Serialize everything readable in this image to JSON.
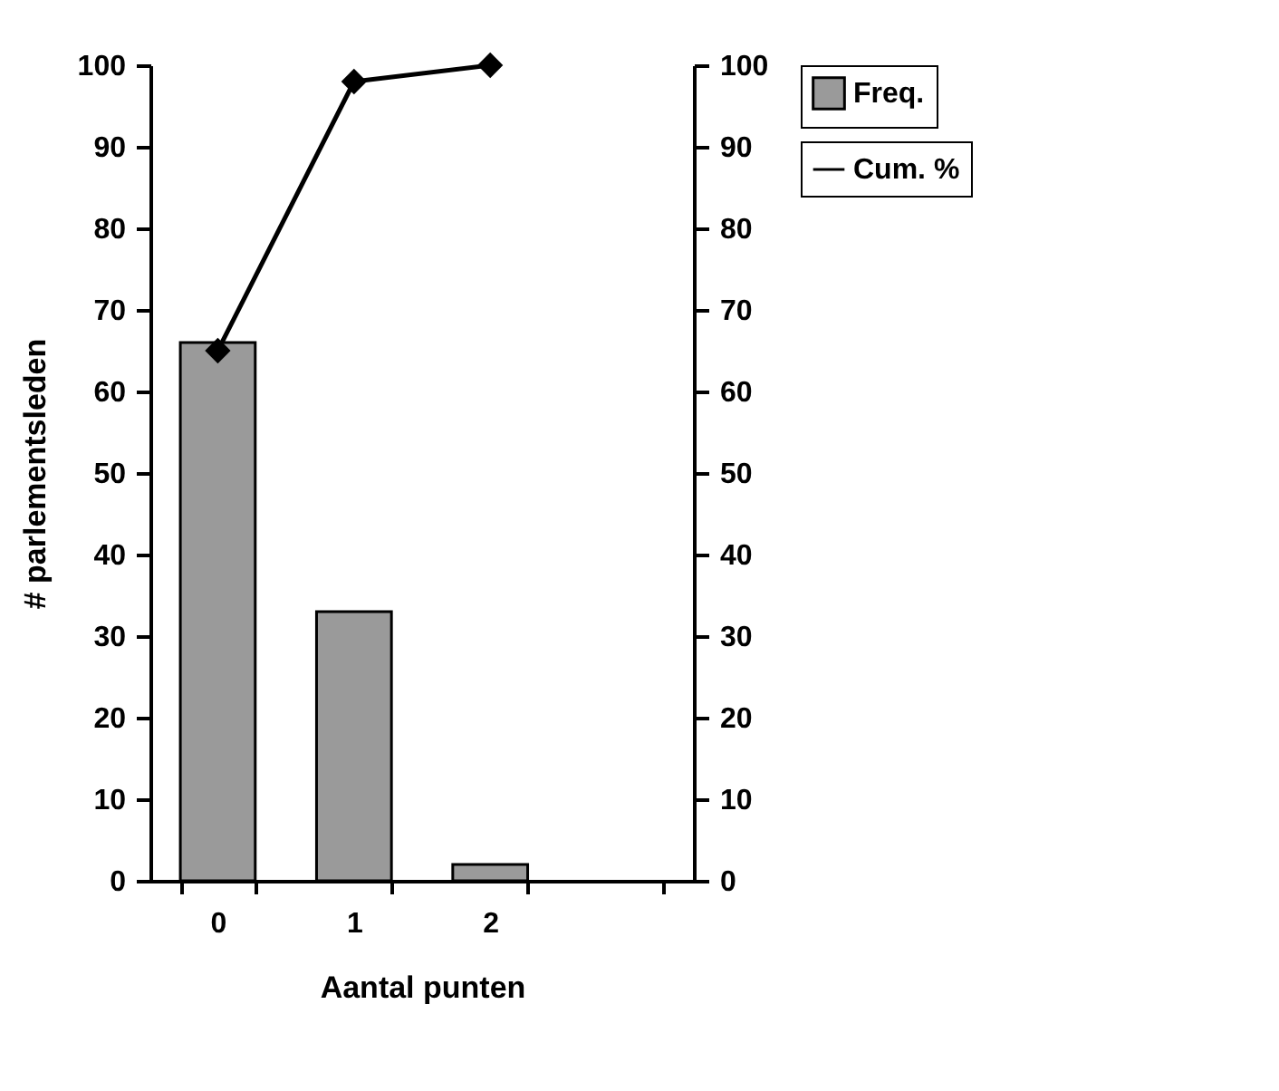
{
  "chart_data": {
    "type": "bar",
    "xlabel": "Aantal punten",
    "ylabel": "# parlementsleden",
    "categories": [
      "0",
      "1",
      "2",
      null
    ],
    "series": [
      {
        "name": "Freq.",
        "color": "#9a9a9a",
        "values": [
          66,
          33,
          2,
          null
        ]
      },
      {
        "name": "Cum. %",
        "type": "line",
        "axis": "y2",
        "color": "#000000",
        "marker": "diamond",
        "values": [
          65,
          98,
          100,
          null
        ]
      }
    ],
    "ylim": [
      0,
      100
    ],
    "yticks": [
      0,
      10,
      20,
      30,
      40,
      50,
      60,
      70,
      80,
      90,
      100
    ],
    "y2lim": [
      0,
      100
    ],
    "y2ticks": [
      0,
      10,
      20,
      30,
      40,
      50,
      60,
      70,
      80,
      90,
      100
    ],
    "grid": false,
    "legend": "right"
  }
}
